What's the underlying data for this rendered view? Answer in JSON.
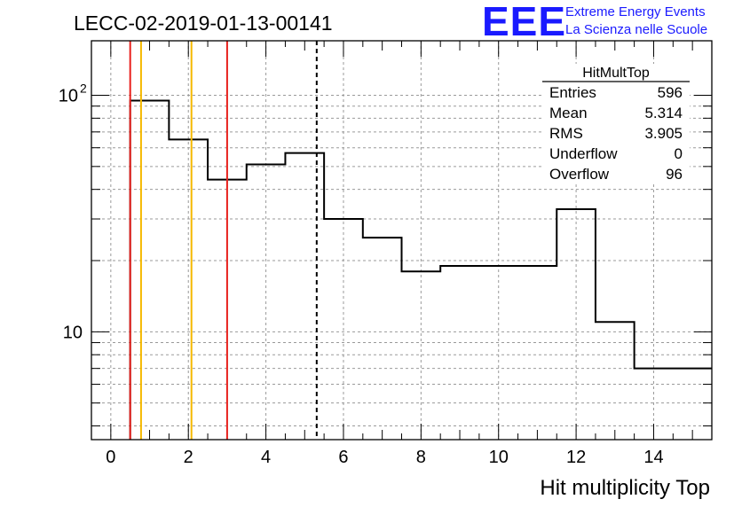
{
  "title": "LECC-02-2019-01-13-00141",
  "logo": {
    "mark": "EEE",
    "line1": "Extreme Energy Events",
    "line2": "La Scienza nelle Scuole",
    "color": "#1a1aff"
  },
  "stats_box": {
    "name": "HitMultTop",
    "rows": [
      {
        "label": "Entries",
        "value": "596"
      },
      {
        "label": "Mean",
        "value": "5.314"
      },
      {
        "label": "RMS",
        "value": "3.905"
      },
      {
        "label": "Underflow",
        "value": "0"
      },
      {
        "label": "Overflow",
        "value": "96"
      }
    ]
  },
  "chart_data": {
    "type": "histogram",
    "title": "LECC-02-2019-01-13-00141",
    "xlabel": "Hit multiplicity Top",
    "ylabel": "",
    "xlim": [
      -0.5,
      15.5
    ],
    "ylim": [
      3.5,
      170
    ],
    "log_y": true,
    "grid": true,
    "x_ticks": [
      0,
      2,
      4,
      6,
      8,
      10,
      12,
      14
    ],
    "y_tick_labels": [
      {
        "value": 10,
        "mantissa": "10",
        "exponent": ""
      },
      {
        "value": 100,
        "mantissa": "10",
        "exponent": "2"
      }
    ],
    "bin_edges": [
      0.5,
      1.5,
      2.5,
      3.5,
      4.5,
      5.5,
      6.5,
      7.5,
      8.5,
      9.5,
      10.5,
      11.5,
      12.5,
      13.5,
      14.5,
      15.5
    ],
    "counts": [
      95,
      65,
      44,
      51,
      57,
      30,
      25,
      18,
      19,
      19,
      19,
      33,
      11,
      7,
      7
    ],
    "vertical_lines": [
      {
        "x": 0.5,
        "color": "#e8201c",
        "style": "solid"
      },
      {
        "x": 0.78,
        "color": "#f5b800",
        "style": "solid"
      },
      {
        "x": 2.08,
        "color": "#f5b800",
        "style": "solid"
      },
      {
        "x": 3.0,
        "color": "#e8201c",
        "style": "solid"
      },
      {
        "x": 5.31,
        "color": "#000000",
        "style": "dashed"
      }
    ]
  }
}
